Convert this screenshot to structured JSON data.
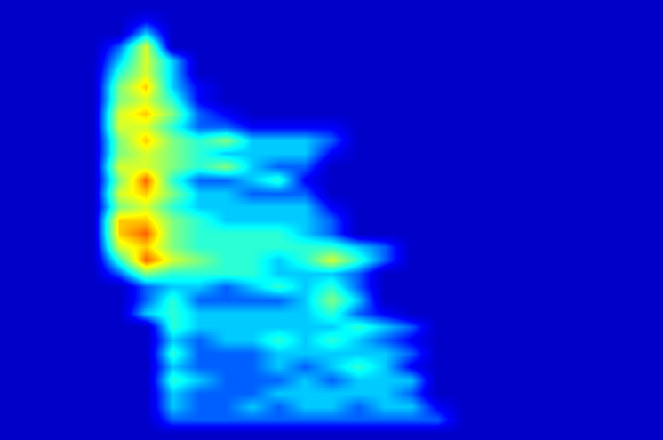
{
  "chart_data": {
    "type": "heatmap",
    "xlim": [
      -0.5,
      24.5
    ],
    "ylim": [
      32.5,
      -0.5
    ],
    "zlim": [
      0,
      10
    ],
    "tick_labels": false,
    "z": [
      [
        0,
        0,
        0,
        0,
        0,
        0,
        0,
        0,
        0,
        0,
        0,
        0,
        0,
        0,
        0,
        0,
        0,
        0,
        0,
        0,
        0,
        0,
        0,
        0,
        0
      ],
      [
        0,
        0,
        0,
        0,
        0,
        1,
        0,
        0,
        0,
        0,
        0,
        0,
        0,
        0,
        0,
        0,
        0,
        0,
        0,
        0,
        0,
        0,
        0,
        0,
        0
      ],
      [
        0,
        0,
        0,
        0,
        0,
        3,
        0,
        0,
        0,
        0,
        0,
        0,
        0,
        0,
        0,
        0,
        0,
        0,
        0,
        0,
        0,
        0,
        0,
        0,
        0
      ],
      [
        0,
        0,
        0,
        0,
        2,
        6,
        0,
        0,
        0,
        0,
        0,
        0,
        0,
        0,
        0,
        0,
        0,
        0,
        0,
        0,
        0,
        0,
        0,
        0,
        0
      ],
      [
        0,
        0,
        0,
        0,
        3,
        6,
        3,
        0,
        0,
        0,
        0,
        0,
        0,
        0,
        0,
        0,
        0,
        0,
        0,
        0,
        0,
        0,
        0,
        0,
        0
      ],
      [
        0,
        0,
        0,
        0,
        4,
        6,
        3,
        0,
        0,
        0,
        0,
        0,
        0,
        0,
        0,
        0,
        0,
        0,
        0,
        0,
        0,
        0,
        0,
        0,
        0
      ],
      [
        0,
        0,
        0,
        0,
        5,
        7,
        3,
        1,
        0,
        0,
        0,
        0,
        0,
        0,
        0,
        0,
        0,
        0,
        0,
        0,
        0,
        0,
        0,
        0,
        0
      ],
      [
        0,
        0,
        0,
        0,
        5,
        6,
        4,
        1,
        0,
        0,
        0,
        0,
        0,
        0,
        0,
        0,
        0,
        0,
        0,
        0,
        0,
        0,
        0,
        0,
        0
      ],
      [
        0,
        0,
        0,
        0,
        6,
        7,
        5,
        2,
        1,
        0,
        0,
        0,
        0,
        0,
        0,
        0,
        0,
        0,
        0,
        0,
        0,
        0,
        0,
        0,
        0
      ],
      [
        0,
        0,
        0,
        0,
        6,
        6,
        4,
        2,
        2,
        1,
        1,
        1,
        1,
        0,
        0,
        0,
        0,
        0,
        0,
        0,
        0,
        0,
        0,
        0,
        0
      ],
      [
        0,
        0,
        0,
        0,
        5,
        7,
        5,
        4,
        5,
        3,
        3,
        3,
        2,
        0,
        0,
        0,
        0,
        0,
        0,
        0,
        0,
        0,
        0,
        0,
        0
      ],
      [
        0,
        0,
        0,
        0,
        5,
        6,
        5,
        4,
        3,
        3,
        3,
        3,
        1,
        0,
        0,
        0,
        0,
        0,
        0,
        0,
        0,
        0,
        0,
        0,
        0
      ],
      [
        0,
        0,
        0,
        0,
        6,
        6,
        5,
        4,
        5,
        3,
        2,
        2,
        0,
        0,
        0,
        0,
        0,
        0,
        0,
        0,
        0,
        0,
        0,
        0,
        0
      ],
      [
        0,
        0,
        0,
        0,
        5,
        8,
        4,
        2,
        2,
        3,
        4,
        1,
        0,
        0,
        0,
        0,
        0,
        0,
        0,
        0,
        0,
        0,
        0,
        0,
        0
      ],
      [
        0,
        0,
        0,
        0,
        6,
        7,
        5,
        3,
        3,
        2,
        2,
        2,
        0,
        0,
        0,
        0,
        0,
        0,
        0,
        0,
        0,
        0,
        0,
        0,
        0
      ],
      [
        0,
        0,
        0,
        0,
        5,
        6,
        4,
        3,
        3,
        3,
        3,
        3,
        1,
        0,
        0,
        0,
        0,
        0,
        0,
        0,
        0,
        0,
        0,
        0,
        0
      ],
      [
        0,
        0,
        0,
        0,
        7,
        7,
        5,
        4,
        3,
        3,
        3,
        3,
        2,
        0,
        0,
        0,
        0,
        0,
        0,
        0,
        0,
        0,
        0,
        0,
        0
      ],
      [
        0,
        0,
        0,
        0,
        7,
        8,
        5,
        4,
        4,
        4,
        4,
        3,
        2,
        0,
        0,
        0,
        0,
        0,
        0,
        0,
        0,
        0,
        0,
        0,
        0
      ],
      [
        0,
        0,
        0,
        0,
        6,
        7,
        5,
        4,
        4,
        4,
        4,
        4,
        4,
        3,
        2,
        0,
        0,
        0,
        0,
        0,
        0,
        0,
        0,
        0,
        0
      ],
      [
        0,
        0,
        0,
        0,
        4,
        8,
        6,
        5,
        4,
        4,
        3,
        4,
        6,
        4,
        2,
        0,
        0,
        0,
        0,
        0,
        0,
        0,
        0,
        0,
        0
      ],
      [
        0,
        0,
        0,
        0,
        2,
        5,
        4,
        4,
        4,
        4,
        3,
        3,
        3,
        2,
        0,
        0,
        0,
        0,
        0,
        0,
        0,
        0,
        0,
        0,
        0
      ],
      [
        0,
        0,
        0,
        0,
        0,
        2,
        3,
        3,
        2,
        3,
        4,
        3,
        4,
        2,
        0,
        0,
        0,
        0,
        0,
        0,
        0,
        0,
        0,
        0,
        0
      ],
      [
        0,
        0,
        0,
        0,
        0,
        2,
        4,
        2,
        2,
        2,
        2,
        3,
        5,
        3,
        0,
        0,
        0,
        0,
        0,
        0,
        0,
        0,
        0,
        0,
        0
      ],
      [
        0,
        0,
        0,
        0,
        0,
        3,
        4,
        3,
        3,
        3,
        3,
        3,
        4,
        2,
        1,
        0,
        0,
        0,
        0,
        0,
        0,
        0,
        0,
        0,
        0
      ],
      [
        0,
        0,
        0,
        0,
        0,
        0,
        4,
        3,
        3,
        3,
        3,
        3,
        3,
        4,
        3,
        2,
        0,
        0,
        0,
        0,
        0,
        0,
        0,
        0,
        0
      ],
      [
        0,
        0,
        0,
        0,
        0,
        0,
        3,
        2,
        3,
        3,
        4,
        3,
        4,
        3,
        2,
        1,
        0,
        0,
        0,
        0,
        0,
        0,
        0,
        0,
        0
      ],
      [
        0,
        0,
        0,
        0,
        0,
        0,
        4,
        2,
        2,
        2,
        3,
        3,
        3,
        3,
        3,
        2,
        0,
        0,
        0,
        0,
        0,
        0,
        0,
        0,
        0
      ],
      [
        0,
        0,
        0,
        0,
        0,
        0,
        3,
        2,
        2,
        2,
        3,
        2,
        3,
        4,
        3,
        1,
        0,
        0,
        0,
        0,
        0,
        0,
        0,
        0,
        0
      ],
      [
        0,
        0,
        0,
        0,
        0,
        0,
        4,
        3,
        2,
        2,
        2,
        3,
        2,
        3,
        3,
        3,
        0,
        0,
        0,
        0,
        0,
        0,
        0,
        0,
        0
      ],
      [
        0,
        0,
        0,
        0,
        0,
        0,
        3,
        2,
        2,
        2,
        3,
        3,
        3,
        3,
        3,
        2,
        0,
        0,
        0,
        0,
        0,
        0,
        0,
        0,
        0
      ],
      [
        0,
        0,
        0,
        0,
        0,
        0,
        3,
        2,
        2,
        3,
        2,
        3,
        3,
        2,
        3,
        3,
        1,
        0,
        0,
        0,
        0,
        0,
        0,
        0,
        0
      ],
      [
        0,
        0,
        0,
        0,
        0,
        0,
        2,
        2,
        2,
        2,
        2,
        2,
        2,
        2,
        2,
        2,
        2,
        0,
        0,
        0,
        0,
        0,
        0,
        0,
        0
      ],
      [
        0,
        0,
        0,
        0,
        0,
        0,
        0,
        0,
        0,
        0,
        0,
        0,
        0,
        0,
        0,
        0,
        0,
        0,
        0,
        0,
        0,
        0,
        0,
        0,
        0
      ]
    ]
  }
}
